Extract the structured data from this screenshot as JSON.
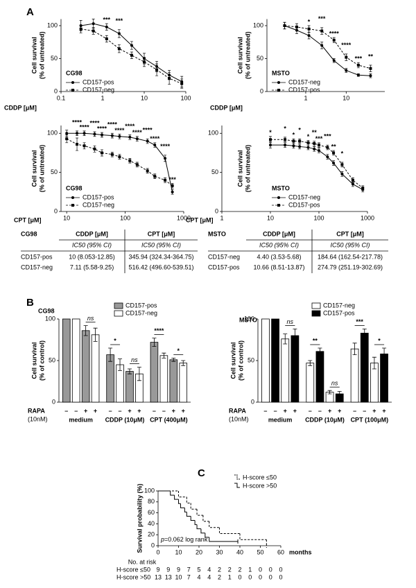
{
  "panel_labels": [
    "A",
    "B",
    "C"
  ],
  "chart_data": [
    {
      "type": "dose_response",
      "title": "CG98",
      "x_label": "CDDP [μM]",
      "y_label": [
        "Cell survival",
        "(% of untreated)"
      ],
      "xscale": "log",
      "xlim": [
        0.1,
        100
      ],
      "xticks": [
        0.1,
        1,
        10,
        100
      ],
      "ylim": [
        0,
        110
      ],
      "yticks": [
        0,
        50,
        100
      ],
      "x": [
        0.3,
        0.6,
        1.25,
        2.5,
        5,
        10,
        20,
        40,
        80
      ],
      "series": [
        {
          "name": "CD157-pos",
          "color": "#000000",
          "dash": false,
          "values": [
            100,
            103,
            98,
            88,
            70,
            50,
            38,
            25,
            15
          ],
          "errors": [
            8,
            7,
            5,
            6,
            6,
            8,
            8,
            7,
            8
          ]
        },
        {
          "name": "CD157-neg",
          "color": "#000000",
          "dash": true,
          "values": [
            95,
            92,
            80,
            65,
            55,
            45,
            33,
            20,
            12
          ],
          "errors": [
            6,
            5,
            5,
            6,
            5,
            7,
            9,
            9,
            7
          ]
        }
      ],
      "significance": [
        null,
        null,
        "***",
        "***",
        null,
        null,
        null,
        null,
        null
      ]
    },
    {
      "type": "dose_response",
      "title": "MSTO",
      "x_label": "CDDP [μM]",
      "y_label": [
        "Cell survival",
        "(% of untreated)"
      ],
      "xscale": "log",
      "xlim": [
        0.11,
        90
      ],
      "xticks": [
        1,
        10
      ],
      "ylim": [
        0,
        110
      ],
      "yticks": [
        0,
        50,
        100
      ],
      "x": [
        0.3,
        0.6,
        1.2,
        2.5,
        5,
        10,
        20,
        40
      ],
      "series": [
        {
          "name": "CD157-neg",
          "color": "#000000",
          "dash": false,
          "values": [
            100,
            93,
            85,
            70,
            47,
            32,
            25,
            24
          ],
          "errors": [
            5,
            5,
            5,
            5,
            3,
            3,
            2,
            3
          ]
        },
        {
          "name": "CD157-pos",
          "color": "#000000",
          "dash": true,
          "values": [
            100,
            98,
            95,
            92,
            78,
            52,
            40,
            35
          ],
          "errors": [
            5,
            5,
            5,
            5,
            4,
            5,
            4,
            5
          ]
        }
      ],
      "significance": [
        null,
        null,
        "*",
        "***",
        "****",
        "****",
        "***",
        "**"
      ]
    },
    {
      "type": "dose_response",
      "title": "CG98",
      "x_label": "CPT [μM]",
      "y_label": [
        "Cell survival",
        "(% of untreated)"
      ],
      "xscale": "log",
      "xlim": [
        8,
        1000
      ],
      "xticks": [
        10,
        100,
        1000
      ],
      "ylim": [
        0,
        110
      ],
      "yticks": [
        0,
        50,
        100
      ],
      "x": [
        10,
        15,
        20,
        30,
        40,
        60,
        80,
        120,
        160,
        240,
        320,
        480,
        640
      ],
      "series": [
        {
          "name": "CD157-pos",
          "color": "#000000",
          "dash": false,
          "values": [
            100,
            100,
            100,
            99,
            98,
            97,
            96,
            95,
            93,
            90,
            85,
            68,
            25
          ],
          "errors": [
            4,
            3,
            3,
            3,
            3,
            3,
            3,
            3,
            3,
            3,
            3,
            4,
            3
          ]
        },
        {
          "name": "CD157-neg",
          "color": "#000000",
          "dash": true,
          "values": [
            93,
            86,
            84,
            80,
            75,
            73,
            70,
            65,
            60,
            52,
            45,
            40,
            33
          ],
          "errors": [
            5,
            8,
            4,
            4,
            4,
            3,
            3,
            3,
            3,
            3,
            3,
            3,
            3
          ]
        }
      ],
      "significance": [
        null,
        "****",
        "****",
        "****",
        "****",
        "****",
        "****",
        "****",
        "****",
        "****",
        "****",
        "****",
        "***"
      ]
    },
    {
      "type": "dose_response",
      "title": "MSTO",
      "x_label": "CPT [μM]",
      "y_label": [
        "Cell survival",
        "(% of untreated)"
      ],
      "xscale": "log",
      "xlim": [
        1,
        1000
      ],
      "xticks": [
        1,
        10,
        100,
        1000
      ],
      "ylim": [
        0,
        110
      ],
      "yticks": [
        0,
        50,
        100
      ],
      "x": [
        10,
        20,
        30,
        40,
        60,
        80,
        100,
        150,
        200,
        300,
        500,
        800
      ],
      "series": [
        {
          "name": "CD157-neg",
          "color": "#000000",
          "dash": false,
          "values": [
            85,
            85,
            84,
            83,
            82,
            80,
            78,
            70,
            62,
            48,
            35,
            28
          ],
          "errors": [
            4,
            3,
            3,
            3,
            3,
            3,
            3,
            3,
            3,
            3,
            3,
            3
          ]
        },
        {
          "name": "CD157-pos",
          "color": "#000000",
          "dash": true,
          "values": [
            92,
            92,
            90,
            90,
            88,
            87,
            85,
            82,
            75,
            60,
            40,
            30
          ],
          "errors": [
            4,
            3,
            3,
            3,
            3,
            3,
            3,
            3,
            3,
            3,
            3,
            3
          ]
        }
      ],
      "significance": [
        "*",
        "*",
        "*",
        "*",
        "*",
        "**",
        "***",
        "***",
        "**",
        "*",
        null,
        null
      ]
    },
    {
      "type": "grouped_bar",
      "title": "CG98",
      "y_label": [
        "Cell survival",
        "(% of control)"
      ],
      "ylim": [
        0,
        100
      ],
      "yticks": [
        0,
        50,
        100
      ],
      "groups": [
        "medium",
        "CDDP (10μM)",
        "CPT (400μM)"
      ],
      "rapa_label": "RAPA",
      "rapa_unit": "(10nM)",
      "rapa": [
        "–",
        "+"
      ],
      "series": [
        {
          "name": "CD157-pos",
          "color": "#999999",
          "values": [
            100,
            86,
            57,
            37,
            72,
            51
          ],
          "errors": [
            0,
            6,
            8,
            3,
            5,
            2
          ]
        },
        {
          "name": "CD157-neg",
          "color": "#ffffff",
          "values": [
            100,
            81,
            45,
            34,
            56,
            47
          ],
          "errors": [
            0,
            8,
            7,
            8,
            3,
            3
          ]
        }
      ],
      "significance": [
        [
          null,
          "ns"
        ],
        [
          "*",
          "ns"
        ],
        [
          "****",
          "*"
        ]
      ]
    },
    {
      "type": "grouped_bar",
      "title": "MSTO",
      "y_label": [
        "Cell survival",
        "(% of control)"
      ],
      "ylim": [
        0,
        100
      ],
      "yticks": [
        0,
        50,
        100
      ],
      "groups": [
        "medium",
        "CDDP (10μM)",
        "CPT (100μM)"
      ],
      "rapa_label": "RAPA",
      "rapa_unit": "(10nM)",
      "rapa": [
        "–",
        "+"
      ],
      "series": [
        {
          "name": "CD157-neg",
          "color": "#ffffff",
          "values": [
            100,
            76,
            47,
            12,
            64,
            47
          ],
          "errors": [
            0,
            6,
            3,
            2,
            7,
            7
          ]
        },
        {
          "name": "CD157-pos",
          "color": "#000000",
          "values": [
            100,
            80,
            61,
            10,
            83,
            58
          ],
          "errors": [
            0,
            8,
            4,
            3,
            5,
            7
          ]
        }
      ],
      "significance": [
        [
          null,
          "ns"
        ],
        [
          "**",
          "ns"
        ],
        [
          "***",
          "*"
        ]
      ]
    },
    {
      "type": "step",
      "x_label": "months",
      "y_label": [
        "Survival probability (%)"
      ],
      "xlim": [
        0,
        60
      ],
      "xticks": [
        0,
        10,
        20,
        30,
        40,
        50,
        60
      ],
      "ylim": [
        0,
        100
      ],
      "yticks": [
        0,
        20,
        40,
        60,
        80,
        100
      ],
      "series": [
        {
          "name": "H-score ≤50",
          "color": "#000000",
          "dash": true,
          "x": [
            0,
            10,
            14,
            16,
            19,
            22,
            25,
            30,
            40,
            53
          ],
          "values": [
            100,
            88.9,
            77.8,
            66.7,
            55.6,
            44.4,
            33.3,
            22.2,
            11.1,
            0
          ],
          "end": 53
        },
        {
          "name": "H-score >50",
          "color": "#000000",
          "dash": false,
          "x": [
            0,
            6,
            8,
            10,
            11,
            13,
            14,
            16,
            18,
            19,
            21,
            23,
            25
          ],
          "values": [
            100,
            92.3,
            84.6,
            76.9,
            69.2,
            61.5,
            53.8,
            46.2,
            38.5,
            30.8,
            23.1,
            15.4,
            7.7
          ],
          "end": 39
        }
      ],
      "annotation": {
        "italic": "p",
        "text": "=0.062 log rank"
      },
      "risk_table": {
        "title": "No. at risk",
        "rows": [
          {
            "name": "H-score ≤50",
            "values": [
              9,
              9,
              9,
              7,
              5,
              4,
              2,
              2,
              2,
              1,
              0,
              0,
              0
            ]
          },
          {
            "name": "H-score >50",
            "values": [
              13,
              13,
              10,
              7,
              4,
              4,
              2,
              1,
              0,
              0,
              0,
              0,
              0
            ]
          }
        ]
      }
    }
  ],
  "tables": [
    {
      "row_header": "CG98",
      "columns": [
        "CDDP [μM]",
        "CPT [μM]"
      ],
      "subheader": [
        "IC50 (95% CI)",
        "IC50 (95% CI)"
      ],
      "rows": [
        [
          "CD157-pos",
          "10 (8.053-12.85)",
          "345.94 (324.34-364.75)"
        ],
        [
          "CD157-neg",
          "7.11 (5.58-9.25)",
          "516.42 (496.60-539.51)"
        ]
      ]
    },
    {
      "row_header": "MSTO",
      "columns": [
        "CDDP [μM]",
        "CPT [μM]"
      ],
      "subheader": [
        "IC50 (95% CI)",
        "IC50 (95% CI)"
      ],
      "rows": [
        [
          "CD157-neg",
          "4.40 (3.53-5.68)",
          "184.64 (162.54-217.78)"
        ],
        [
          "CD157-pos",
          "10.66 (8.51-13.87)",
          "274.79 (251.19-302.69)"
        ]
      ]
    }
  ]
}
